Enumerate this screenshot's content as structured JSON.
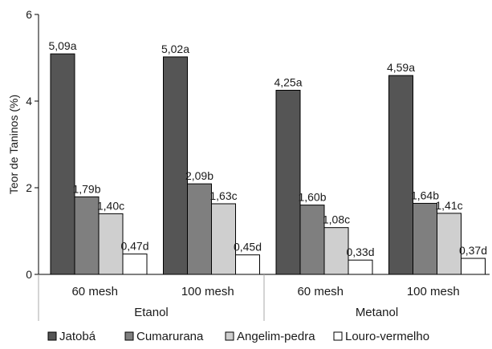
{
  "chart_data": {
    "type": "bar",
    "ylabel": "Teor de Taninos (%)",
    "ylim": [
      0,
      6
    ],
    "yticks": [
      0,
      2,
      4,
      6
    ],
    "groups": [
      {
        "label": "Etanol",
        "categories": [
          "60 mesh",
          "100 mesh"
        ]
      },
      {
        "label": "Metanol",
        "categories": [
          "60 mesh",
          "100 mesh"
        ]
      }
    ],
    "series": [
      {
        "name": "Jatobá",
        "color": "#555555",
        "values": [
          5.09,
          5.02,
          4.25,
          4.59
        ],
        "labels": [
          "5,09a",
          "5,02a",
          "4,25a",
          "4,59a"
        ]
      },
      {
        "name": "Cumarurana",
        "color": "#7f7f7f",
        "values": [
          1.79,
          2.09,
          1.6,
          1.64
        ],
        "labels": [
          "1,79b",
          "2,09b",
          "1,60b",
          "1,64b"
        ]
      },
      {
        "name": "Angelim-pedra",
        "color": "#cfcfcf",
        "values": [
          1.4,
          1.63,
          1.08,
          1.41
        ],
        "labels": [
          "1,40c",
          "1,63c",
          "1,08c",
          "1,41c"
        ]
      },
      {
        "name": "Louro-vermelho",
        "color": "#ffffff",
        "values": [
          0.47,
          0.45,
          0.33,
          0.37
        ],
        "labels": [
          "0,47d",
          "0,45d",
          "0,33d",
          "0,37d"
        ]
      }
    ],
    "legend_position": "bottom",
    "grid": false
  }
}
